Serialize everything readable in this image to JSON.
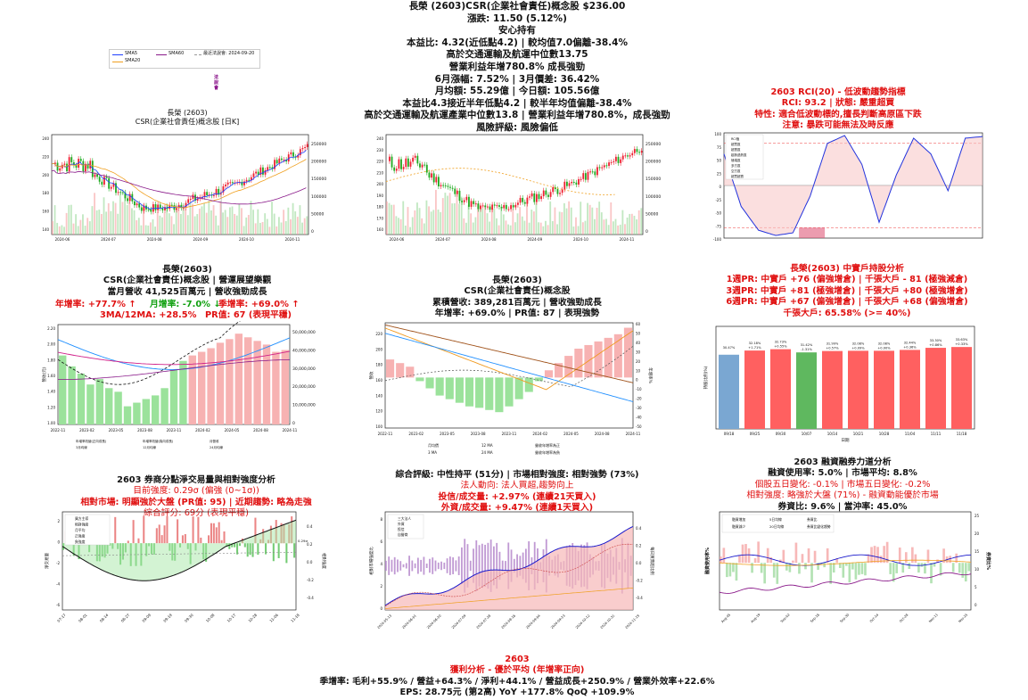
{
  "header": {
    "lines": [
      "長榮 (2603)CSR(企業社會責任)概念股 $236.00",
      "漲跌: 11.50 (5.12%)",
      "安心持有",
      "本益比: 4.32(近低點4.2) | 較均值7.0偏離-38.4%",
      "高於交通運輸及航運中位數13.75",
      "營業利益年增780.8% 成長強勁",
      "6月漲幅: 7.52% | 3月價差: 36.42%",
      "月均額: 55.29億 | 今日額: 105.56億",
      "本益比4.3接近半年低點4.2 | 較半年均值偏離-38.4%",
      "高於交通運輸及航運產業中位數13.8 | 營業利益年增780.8%，成長強勁",
      "風險評級: 風險偏低"
    ]
  },
  "legend_top": {
    "sma5": "SMA5",
    "sma20": "SMA20",
    "sma60": "SMA60",
    "latest": "最近法說會: 2024-09-20",
    "vertical_note": "法說會",
    "colors": {
      "sma5": "#1f3fff",
      "sma20": "#f0a020",
      "sma60": "#8a1a8a"
    }
  },
  "p1": {
    "title1": "長榮 (2603)",
    "title2": "CSR(企業社會責任)概念股 [日K]",
    "xticks": [
      "2024-06",
      "2024-07",
      "2024-08",
      "2024-09",
      "2024-10",
      "2024-11"
    ],
    "yticks": [
      "140",
      "160",
      "180",
      "200",
      "220",
      "240"
    ],
    "vticks": [
      "250000",
      "200000",
      "150000",
      "100000",
      "50000",
      "0"
    ],
    "chart_data": {
      "type": "candlestick",
      "x": [
        "2024-06",
        "2024-07",
        "2024-08",
        "2024-09",
        "2024-10",
        "2024-11"
      ],
      "ylim": [
        135,
        248
      ],
      "close_approx": [
        225,
        205,
        160,
        175,
        190,
        236
      ]
    }
  },
  "p2": {
    "xticks": [
      "2024-06",
      "2024-07",
      "2024-08",
      "2024-09",
      "2024-10",
      "2024-11"
    ],
    "yticks": [
      "160",
      "170",
      "180",
      "190",
      "200",
      "210",
      "220",
      "230",
      "240"
    ],
    "vticks": [
      "250000",
      "200000",
      "150000",
      "100000",
      "50000",
      "0"
    ],
    "chart_data": {
      "type": "candlestick",
      "ylim": [
        155,
        245
      ]
    }
  },
  "p3": {
    "title": "2603 RCI(20) - 低波動趨勢指標",
    "line2": "RCI: 93.2 | 狀態: 嚴重超買",
    "line3": "特性: 適合低波動標的,擅長判斷高原區下跌",
    "line4": "注意: 暴跌可能無法及時反應",
    "legend": [
      "RCI值",
      "超買區",
      "超賣區",
      "趨勢過熱區",
      "極端區",
      "多方區",
      "空方區",
      "超買超賣"
    ],
    "yticks": [
      "100",
      "75",
      "50",
      "25",
      "0",
      "-25",
      "-50",
      "-75",
      "-100"
    ],
    "chart_data": {
      "type": "line",
      "ylim": [
        -100,
        100
      ],
      "values": [
        60,
        -40,
        -85,
        -95,
        -90,
        -20,
        80,
        95,
        40,
        -70,
        20,
        90,
        60,
        -10,
        90,
        93
      ]
    }
  },
  "p4": {
    "title1": "長榮(2603)",
    "title2": "CSR(企業社會責任)概念股 | 營運展望樂觀",
    "title3": "當月營收 41,525百萬元 | 營收強勁成長",
    "yoy": "年增率: +77.7% ↑",
    "mom": "月增率: -7.0% ↓",
    "qoq": "季增率: +69.0% ↑",
    "ma": "3MA/12MA: +28.5%",
    "pr": "PR值: 67 (表現平穩)",
    "ylabel": "營收(元)",
    "yticks": [
      "2.20",
      "2.00",
      "1.80",
      "1.60",
      "1.40",
      "1.20",
      "1.00"
    ],
    "rticks": [
      "50,000,000",
      "40,000,000",
      "30,000,000",
      "20,000,000",
      "10,000,000",
      "0"
    ],
    "xticks": [
      "2022-11",
      "2023-02",
      "2023-05",
      "2023-08",
      "2023-11",
      "2024-02",
      "2024-05",
      "2024-08",
      "2024-11"
    ],
    "legend": [
      "年增率改變(正向成長)",
      "年增率改變(負向成長)",
      "月營收",
      "3月均線",
      "12月均線",
      "24月均線"
    ],
    "chart_data": {
      "type": "bar",
      "values": [
        38,
        32,
        28,
        22,
        25,
        20,
        18,
        10,
        12,
        14,
        16,
        20,
        30,
        35,
        38,
        40,
        42,
        45,
        47,
        50,
        48,
        46,
        44,
        40,
        41
      ]
    }
  },
  "p5": {
    "title1": "長榮(2603)",
    "title2": "CSR(企業社會責任)概念股",
    "title3": "累積營收: 389,281百萬元 | 營收強勁成長",
    "title4": "年增率: +69.0% | PR值: 87 | 表現強勢",
    "ylabel": "營收",
    "rlabel": "年增率%",
    "yticks": [
      "220",
      "200",
      "180",
      "160",
      "140",
      "120",
      "100"
    ],
    "rticks": [
      "60",
      "50",
      "40",
      "30",
      "20",
      "10",
      "0",
      "-10",
      "-20",
      "-30",
      "-40",
      "-50"
    ],
    "xticks": [
      "2022-11",
      "2023-02",
      "2023-05",
      "2023-08",
      "2023-11",
      "2024-02",
      "2024-05",
      "2024-08",
      "2024-11"
    ],
    "legend": [
      "月均價",
      "3 MA",
      "12 MA",
      "24 MA",
      "營收年增率為正",
      "營收年增率為負"
    ],
    "chart_data": {
      "type": "bar",
      "values": [
        25,
        20,
        15,
        -5,
        -15,
        -25,
        -30,
        -35,
        -40,
        -42,
        -45,
        -48,
        -40,
        -30,
        -20,
        -5,
        10,
        20,
        30,
        40,
        45,
        50,
        55,
        60,
        69
      ]
    }
  },
  "p6": {
    "title": "長榮(2603) 中實戶持股分析",
    "l1": "1週PR: 中實戶 +76 (偏強增倉) | 千張大戶 - 81 (極強減倉)",
    "l2": "3週PR: 中實戶 +81 (極強增倉) | 千張大戶 +80 (極強增倉)",
    "l3": "6週PR: 中實戶 +67 (偏強增倉) | 千張大戶 +68 (偏強增倉)",
    "l4": "千張大戶: 65.58% (>= 40%)",
    "ylabel": "持股比例(%)",
    "xlabel": "日期",
    "xticks": [
      "09/18",
      "09/25",
      "09/30",
      "10/07",
      "10/14",
      "10/21",
      "10/28",
      "11/04",
      "11/11",
      "11/18"
    ],
    "chart_data": {
      "type": "bar",
      "values": [
        30.47,
        32.18,
        32.73,
        31.42,
        31.99,
        32.08,
        32.08,
        32.44,
        33.3,
        33.63
      ],
      "labels": [
        "30.47%",
        "32.18%",
        "32.73%",
        "31.42%",
        "31.99%",
        "32.08%",
        "32.08%",
        "32.44%",
        "33.30%",
        "33.63%"
      ],
      "changes": [
        "",
        "+1.71%",
        "+0.55%",
        "-1.31%",
        "+0.57%",
        "+0.09%",
        "+0.00%",
        "+0.36%",
        "+0.86%",
        "+0.33%"
      ],
      "colors": [
        "#7aa7d2",
        "#ff6060",
        "#ff6060",
        "#5fb85f",
        "#ff6060",
        "#ff6060",
        "#ff6060",
        "#ff6060",
        "#ff6060",
        "#ff6060"
      ]
    }
  },
  "p7": {
    "title": "2603 券商分點淨交易量與相對強度分析",
    "l1": "目前強度: 0.29σ (偏強 (0~1σ))",
    "l2": "相對市場: 明顯強於大盤 (PR值: 95) | 近期趨勢: 略為走強",
    "l3": "綜合評分: 69分 (表現平穩)",
    "ylabel": "淨交易量",
    "rlabel": "相對強度",
    "legend": [
      "買方主導",
      "相對強度",
      "月平均",
      "正強度",
      "負強度"
    ],
    "yticks": [
      "2",
      "0",
      "-2",
      "-4",
      "-6"
    ],
    "rticks": [
      "0.4",
      "0.2",
      "0.0",
      "-0.2",
      "-0.4"
    ],
    "xticks": [
      "07-17",
      "08-01",
      "08-14",
      "08-27",
      "09-09",
      "09-19",
      "09-30",
      "10-08",
      "10-17",
      "10-28",
      "11-06",
      "11-18"
    ],
    "last_val": "0.29σ"
  },
  "p8": {
    "title": "綜合評級: 中性持平 (51分) | 市場相對強度: 相對強勢 (73%)",
    "l1": "法人動向: 法人買超,趨勢向上",
    "l2": "投信/成交量: +2.97% (連續21天買入)",
    "l3": "外資/成交量: +9.47% (連續1天買入)",
    "ylabel": "相對市場強度比",
    "rlabel": "每日買賣超比例",
    "legend": [
      "三大法人",
      "外資",
      "投信",
      "自營商"
    ],
    "yticks": [
      "8",
      "6",
      "4",
      "2",
      "0"
    ],
    "rticks": [
      "0.4",
      "0.2",
      "0.0",
      "-0.2",
      "-0.4"
    ],
    "xticks": [
      "2024-05-13",
      "2024-06-01",
      "2024-06-20",
      "2024-07-09",
      "2024-07-28",
      "2024-08-16",
      "2024-09-04",
      "2024-09-23",
      "2024-10-12",
      "2024-10-31",
      "2024-11-19"
    ]
  },
  "p9": {
    "title": "2603 融資融券力道分析",
    "l1": "融資使用率: 5.0% | 市場平均: 8.8%",
    "l2": "個股五日變化: -0.1% | 市場五日變化: -0.2%",
    "l3": "相對強度: 略強於大盤 (71%) - 融資動能優於市場",
    "l4": "券資比: 9.6% | 當沖率: 45.0%",
    "ylabel": "融資使用率%",
    "rlabel": "券資比%",
    "legend": [
      "融資增加",
      "融資減少",
      "5日均線",
      "20日均線",
      "券資比",
      "券資比變化趨勢"
    ],
    "xticks": [
      "Aug-05",
      "Aug-19",
      "Sep-02",
      "Sep-16",
      "Sep-30",
      "Oct-14",
      "Oct-28",
      "Nov-11",
      "Nov-25"
    ],
    "rticks": [
      "25",
      "20",
      "15",
      "10",
      "5",
      "0"
    ]
  },
  "footer": {
    "title": "2603",
    "l1": "獲利分析 - 優於平均 (年增率正向)",
    "l2": "季增率: 毛利+55.9% / 營益+64.3% / 淨利+44.1% / 營益成長+250.9% / 營業外效率+22.6%",
    "l3": "EPS: 28.75元 (第2高) YoY +177.8% QoQ +109.9%"
  }
}
